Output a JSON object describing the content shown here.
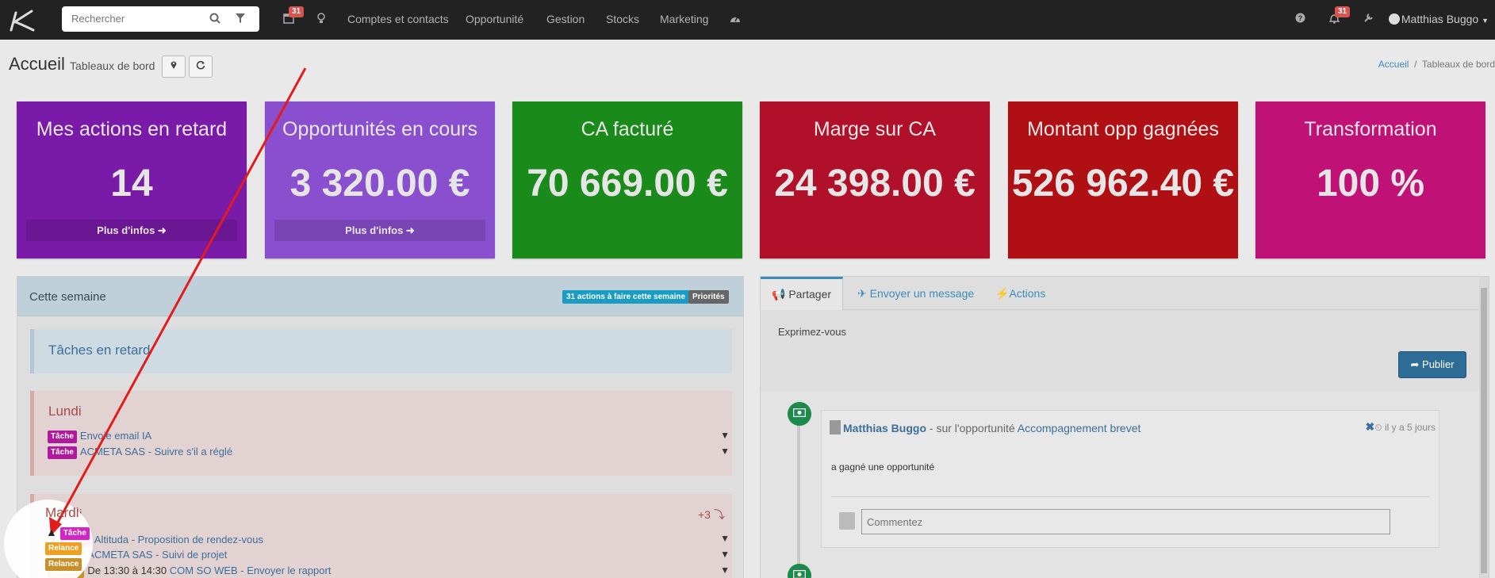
{
  "navbar": {
    "search_placeholder": "Rechercher",
    "calendar_badge": "31",
    "links": [
      "Comptes et contacts",
      "Opportunité",
      "Gestion",
      "Stocks",
      "Marketing"
    ],
    "notif_badge": "31",
    "user_name": "Matthias Buggo"
  },
  "header": {
    "title": "Accueil",
    "subtitle": "Tableaux de bord",
    "breadcrumb_home": "Accueil",
    "breadcrumb_sep": "/",
    "breadcrumb_current": "Tableaux de bord"
  },
  "boxes": [
    {
      "title": "Mes actions en retard",
      "value": "14",
      "more": "Plus d'infos ➜",
      "color": "#7a1aa8"
    },
    {
      "title": "Opportunités en cours",
      "value": "3 320.00 €",
      "more": "Plus d'infos ➜",
      "color": "#8a4fcf"
    },
    {
      "title": "CA facturé",
      "value": "70 669.00 €",
      "more": "",
      "color": "#1a8a1a"
    },
    {
      "title": "Marge sur CA",
      "value": "24 398.00 €",
      "more": "",
      "color": "#b0102a"
    },
    {
      "title": "Montant opp gagnées",
      "value": "526 962.40 €",
      "more": "",
      "color": "#b00f14"
    },
    {
      "title": "Transformation",
      "value": "100 %",
      "more": "",
      "color": "#c01276"
    }
  ],
  "week_panel": {
    "title": "Cette semaine",
    "actions_label": "31 actions à faire cette semaine",
    "priority_label": "Priorités",
    "late_title": "Tâches en retard",
    "monday": {
      "title": "Lundi",
      "rows": [
        {
          "tag": "Tâche",
          "text": "Envoie email IA"
        },
        {
          "tag": "Tâche",
          "text": "ACMETA SAS - Suivre s'il a réglé"
        }
      ]
    },
    "tuesday": {
      "title": "Mardi",
      "extra": "+3 ⤵",
      "rows": [
        {
          "tag": "Tâche",
          "text": "Altituda - Proposition de rendez-vous"
        },
        {
          "tag": "Relance",
          "text": "ACMETA SAS - Suivi de projet"
        },
        {
          "tag": "Relance",
          "prefix": "De 13:30 à 14:30",
          "text": "COM SO WEB - Envoyer le rapport"
        }
      ]
    }
  },
  "social": {
    "tabs": [
      "Partager",
      "Envoyer un message",
      "Actions"
    ],
    "express": "Exprimez-vous",
    "publish": "Publier",
    "post": {
      "author": "Matthias Buggo",
      "middle": "- sur l'opportunité",
      "link": "Accompagnement brevet",
      "time": "il y a 5 jours",
      "body": "a gagné une opportunité",
      "comment_placeholder": "Commentez"
    }
  }
}
